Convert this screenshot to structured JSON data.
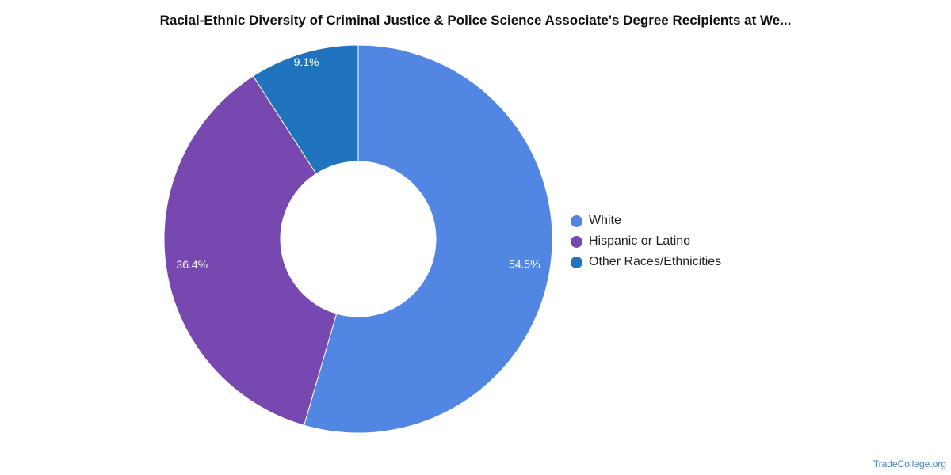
{
  "chart_data": {
    "type": "pie",
    "variant": "donut",
    "title": "Racial-Ethnic Diversity of Criminal Justice & Police Science Associate's Degree Recipients at We...",
    "categories": [
      "White",
      "Hispanic or Latino",
      "Other Races/Ethnicities"
    ],
    "values": [
      54.5,
      36.4,
      9.1
    ],
    "value_labels": [
      "54.5%",
      "36.4%",
      "9.1%"
    ],
    "colors": [
      "#5186e3",
      "#7648b0",
      "#1f74bd"
    ],
    "legend_position": "right"
  },
  "watermark": "TradeCollege.org"
}
